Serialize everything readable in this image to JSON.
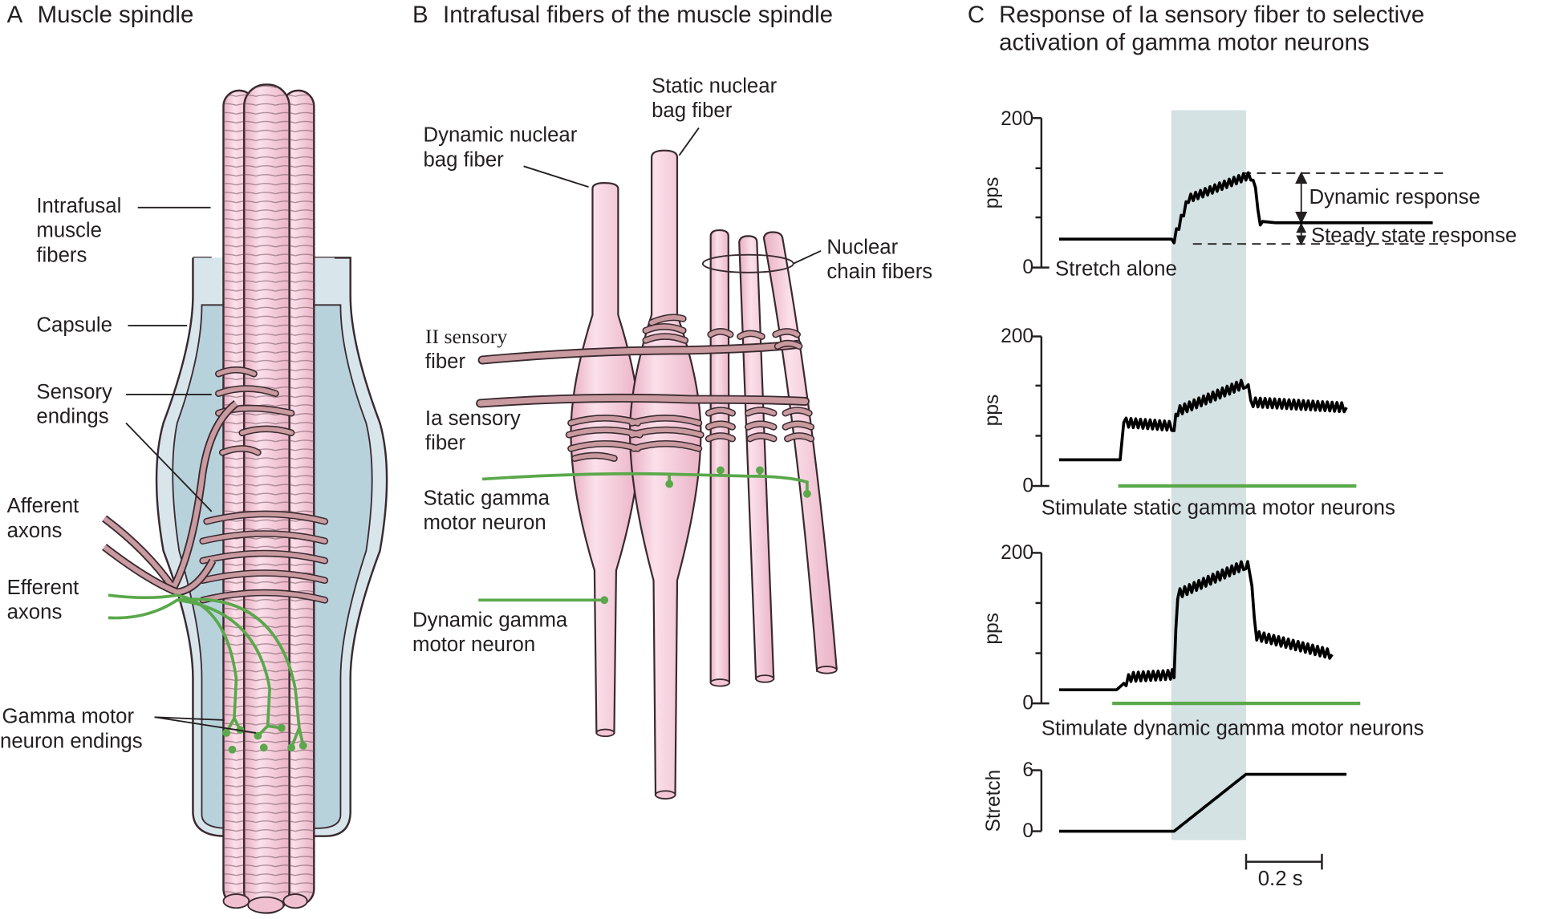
{
  "colors": {
    "fiber_fill": "#f5c6d6",
    "fiber_stroke": "#3a2a30",
    "sensory": "#c99aa0",
    "gamma": "#5aa84a",
    "capsule_outer": "#d8e6ec",
    "capsule_inner": "#b8d2dc",
    "shade": "#d5e2e4"
  },
  "panel_a": {
    "title_letter": "A",
    "title": "Muscle spindle",
    "labels": {
      "intrafusal_1": "Intrafusal",
      "intrafusal_2": "muscle",
      "intrafusal_3": "fibers",
      "capsule": "Capsule",
      "sensory_1": "Sensory",
      "sensory_2": "endings",
      "afferent_1": "Afferent",
      "afferent_2": "axons",
      "efferent_1": "Efferent",
      "efferent_2": "axons",
      "gamma_1": "Gamma motor",
      "gamma_2": "neuron endings"
    }
  },
  "panel_b": {
    "title_letter": "B",
    "title": "Intrafusal fibers of the muscle spindle",
    "labels": {
      "dyn_bag_1": "Dynamic nuclear",
      "dyn_bag_2": "bag fiber",
      "stat_bag_1": "Static nuclear",
      "stat_bag_2": "bag fiber",
      "chain_1": "Nuclear",
      "chain_2": "chain fibers",
      "ii_1": "II sensory",
      "ii_2": "fiber",
      "ia_1": "Ia sensory",
      "ia_2": "fiber",
      "static_gamma_1": "Static gamma",
      "static_gamma_2": "motor neuron",
      "dyn_gamma_1": "Dynamic gamma",
      "dyn_gamma_2": "motor neuron"
    }
  },
  "panel_c": {
    "title_letter": "C",
    "title_1": "Response of Ia sensory fiber to selective",
    "title_2": "activation of gamma motor neurons",
    "dynamic_response": "Dynamic response",
    "steady_state_response": "Steady state response",
    "scale_bar": "0.2 s"
  },
  "chart_data": [
    {
      "type": "line",
      "ylabel": "pps",
      "yticks": [
        "0",
        "200"
      ],
      "ylim": [
        0,
        200
      ],
      "condition": "Stretch alone",
      "series": [
        {
          "x": [
            0,
            0.16,
            0.16,
            0.18,
            0.26,
            0.27,
            0.28,
            0.3,
            0.52
          ],
          "values": [
            38,
            38,
            38,
            92,
            122,
            122,
            62,
            60,
            60
          ]
        }
      ]
    },
    {
      "type": "line",
      "ylabel": "pps",
      "yticks": [
        "0",
        "200"
      ],
      "ylim": [
        0,
        200
      ],
      "condition": "Stimulate static gamma motor neurons",
      "series": [
        {
          "x": [
            0,
            0.085,
            0.09,
            0.16,
            0.165,
            0.26,
            0.27,
            0.4
          ],
          "values": [
            35,
            35,
            85,
            80,
            100,
            138,
            112,
            105
          ]
        }
      ]
    },
    {
      "type": "line",
      "ylabel": "pps",
      "yticks": [
        "0",
        "200"
      ],
      "ylim": [
        0,
        200
      ],
      "condition": "Stimulate dynamic gamma motor neurons",
      "series": [
        {
          "x": [
            0,
            0.08,
            0.1,
            0.155,
            0.16,
            0.165,
            0.26,
            0.265,
            0.275,
            0.38
          ],
          "values": [
            18,
            18,
            35,
            38,
            40,
            145,
            185,
            180,
            90,
            65
          ]
        }
      ]
    },
    {
      "type": "line",
      "ylabel": "Stretch",
      "yticks": [
        "0",
        "6"
      ],
      "ylim": [
        0,
        6
      ],
      "series": [
        {
          "x": [
            0,
            0.16,
            0.26,
            0.4
          ],
          "values": [
            0,
            0,
            5.6,
            5.6
          ]
        }
      ]
    }
  ]
}
